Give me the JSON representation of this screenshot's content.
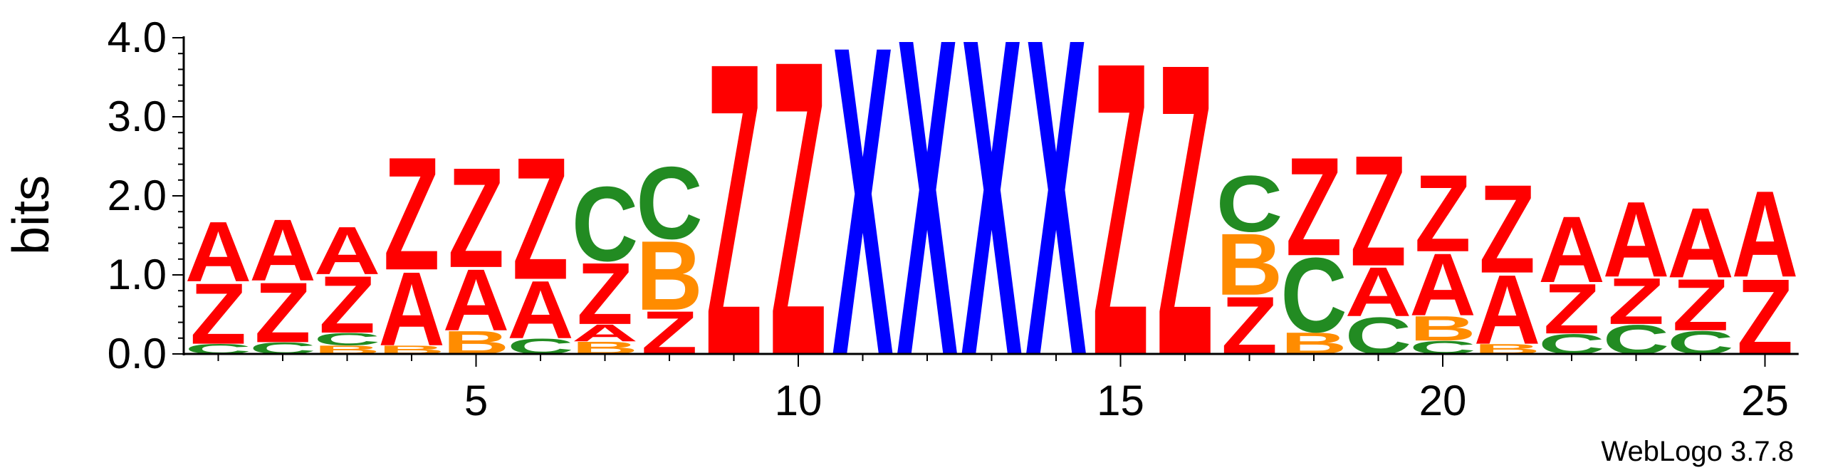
{
  "chart_data": {
    "type": "sequence-logo",
    "ylabel": "bits",
    "ylim": [
      0,
      4.0
    ],
    "y_ticks": [
      "0.0",
      "1.0",
      "2.0",
      "3.0",
      "4.0"
    ],
    "x_ticks": [
      5,
      10,
      15,
      20,
      25
    ],
    "positions": [
      1,
      2,
      3,
      4,
      5,
      6,
      7,
      8,
      9,
      10,
      11,
      12,
      13,
      14,
      15,
      16,
      17,
      18,
      19,
      20,
      21,
      22,
      23,
      24,
      25
    ],
    "letter_colors": {
      "A": "#ff0000",
      "Z": "#ff0000",
      "C": "#228b22",
      "B": "#ff8c00",
      "X": "#0000ff",
      "P": "#800080"
    },
    "stacks": [
      [
        [
          "C",
          0.13
        ],
        [
          "Z",
          0.79
        ],
        [
          "A",
          0.78
        ]
      ],
      [
        [
          "C",
          0.15
        ],
        [
          "Z",
          0.78
        ],
        [
          "A",
          0.8
        ]
      ],
      [
        [
          "B",
          0.11
        ],
        [
          "C",
          0.16
        ],
        [
          "Z",
          0.74
        ],
        [
          "A",
          0.62
        ]
      ],
      [
        [
          "B",
          0.11
        ],
        [
          "A",
          0.96
        ],
        [
          "Z",
          1.47
        ]
      ],
      [
        [
          "B",
          0.3
        ],
        [
          "A",
          0.8
        ],
        [
          "Z",
          1.3
        ]
      ],
      [
        [
          "C",
          0.2
        ],
        [
          "A",
          0.75
        ],
        [
          "Z",
          1.59
        ]
      ],
      [
        [
          "B",
          0.16
        ],
        [
          "A",
          0.22
        ],
        [
          "Z",
          0.8
        ],
        [
          "C",
          0.97
        ]
      ],
      [
        [
          "Z",
          0.56
        ],
        [
          "B",
          0.9
        ],
        [
          "C",
          0.94
        ]
      ],
      [
        [
          "Z",
          3.81
        ]
      ],
      [
        [
          "Z",
          3.84
        ]
      ],
      [
        [
          "X",
          4.03
        ]
      ],
      [
        [
          "X",
          4.13
        ]
      ],
      [
        [
          "X",
          4.13
        ]
      ],
      [
        [
          "X",
          4.13
        ]
      ],
      [
        [
          "Z",
          3.82
        ]
      ],
      [
        [
          "Z",
          3.8
        ]
      ],
      [
        [
          "Z",
          0.75
        ],
        [
          "B",
          0.8
        ],
        [
          "C",
          0.73
        ]
      ],
      [
        [
          "B",
          0.28
        ],
        [
          "C",
          0.97
        ],
        [
          "Z",
          1.28
        ]
      ],
      [
        [
          "C",
          0.48
        ],
        [
          "A",
          0.64
        ],
        [
          "Z",
          1.44
        ]
      ],
      [
        [
          "C",
          0.17
        ],
        [
          "B",
          0.32
        ],
        [
          "A",
          0.81
        ],
        [
          "Z",
          1.0
        ]
      ],
      [
        [
          "B",
          0.13
        ],
        [
          "A",
          0.9
        ],
        [
          "Z",
          1.15
        ]
      ],
      [
        [
          "C",
          0.26
        ],
        [
          "Z",
          0.65
        ],
        [
          "A",
          0.86
        ]
      ],
      [
        [
          "C",
          0.38
        ],
        [
          "Z",
          0.6
        ],
        [
          "A",
          0.98
        ]
      ],
      [
        [
          "C",
          0.3
        ],
        [
          "Z",
          0.67
        ],
        [
          "A",
          0.91
        ]
      ],
      [
        [
          "Z",
          0.98
        ],
        [
          "A",
          1.12
        ]
      ]
    ]
  },
  "footer": {
    "credit": "WebLogo 3.7.8"
  }
}
